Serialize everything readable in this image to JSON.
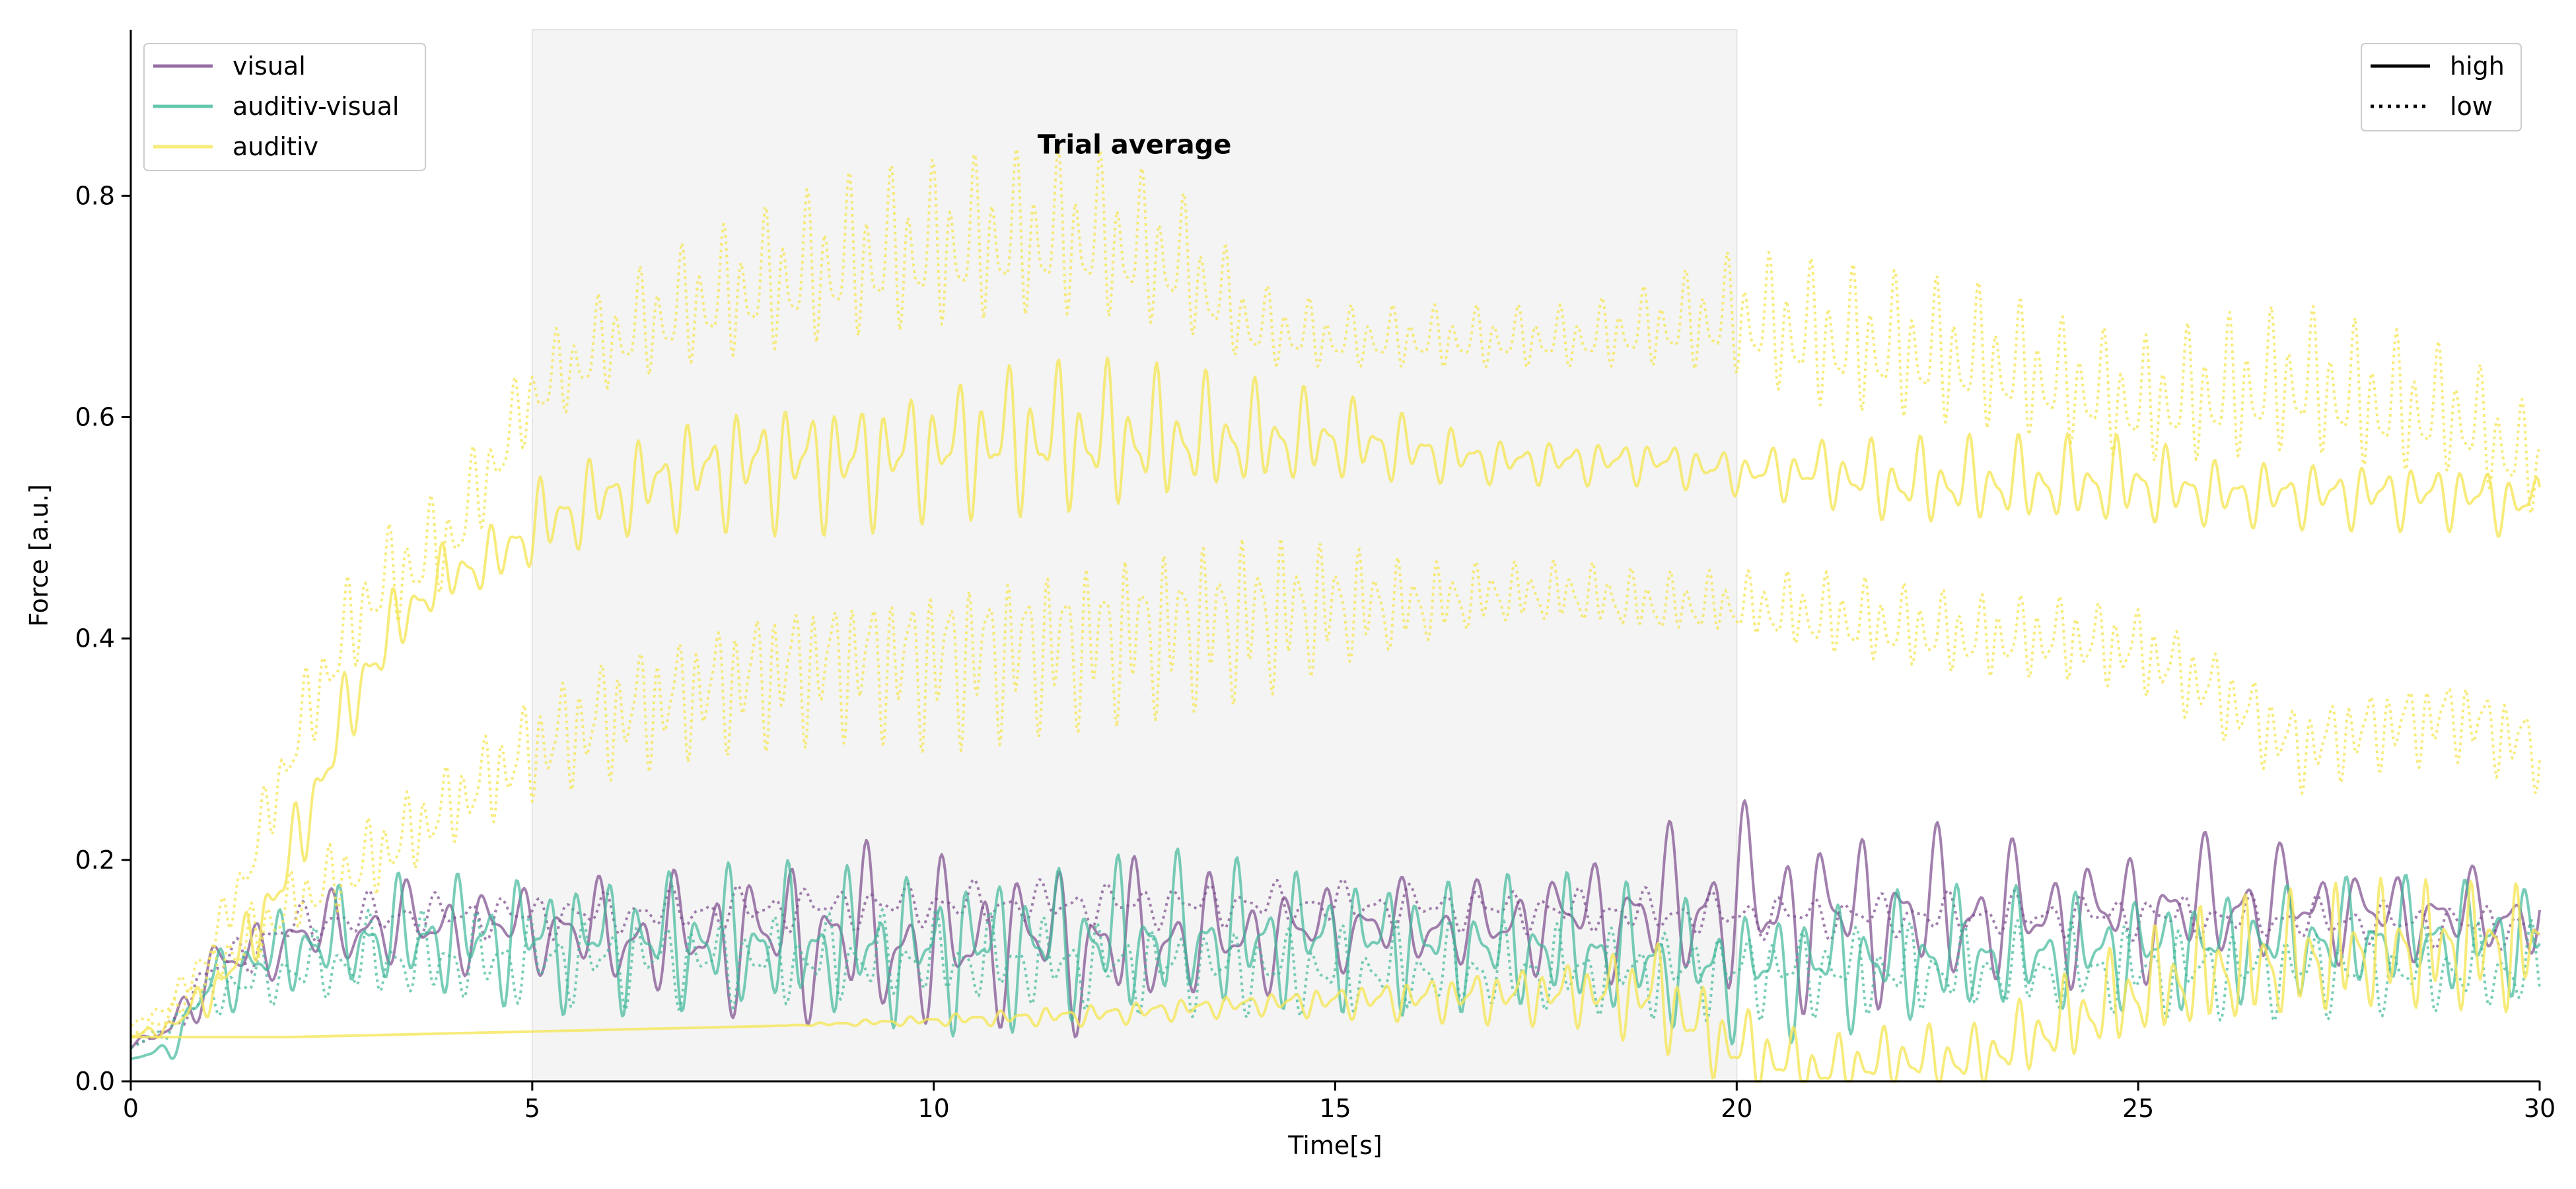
{
  "chart_data": {
    "type": "line",
    "title": "",
    "annotation": "Trial average",
    "xlabel": "Time[s]",
    "ylabel": "Force [a.u.]",
    "xlim": [
      0,
      30
    ],
    "ylim": [
      0,
      0.95
    ],
    "x_ticks": [
      0,
      5,
      10,
      15,
      20,
      25,
      30
    ],
    "x_tick_labels": [
      "0",
      "5",
      "10",
      "15",
      "20",
      "25",
      "30"
    ],
    "y_ticks": [
      0.0,
      0.2,
      0.4,
      0.6,
      0.8
    ],
    "y_tick_labels": [
      "0.0",
      "0.2",
      "0.4",
      "0.6",
      "0.8"
    ],
    "shaded_region": {
      "x": [
        5,
        20
      ],
      "color": "#f4f4f4"
    },
    "grid": false,
    "legend_conditions": {
      "position": "upper-left",
      "entries": [
        {
          "label": "visual",
          "color": "#7b4a8c"
        },
        {
          "label": "auditiv-visual",
          "color": "#3fb89a"
        },
        {
          "label": "auditiv",
          "color": "#f5e65a"
        }
      ]
    },
    "legend_linestyle": {
      "position": "upper-right",
      "entries": [
        {
          "label": "high",
          "style": "solid"
        },
        {
          "label": "low",
          "style": "dotted"
        }
      ]
    },
    "series": [
      {
        "name": "visual",
        "style": "solid",
        "color": "#7b4a8c",
        "x": [
          0,
          0.5,
          1,
          2,
          3,
          4,
          5,
          6,
          7,
          8,
          9,
          10,
          11,
          12,
          13,
          14,
          15,
          16,
          17,
          18,
          19,
          19.5,
          20,
          21,
          22,
          23,
          24,
          25,
          26,
          27,
          28,
          29,
          30
        ],
        "y": [
          0.03,
          0.05,
          0.1,
          0.13,
          0.14,
          0.14,
          0.14,
          0.13,
          0.13,
          0.13,
          0.13,
          0.12,
          0.13,
          0.12,
          0.13,
          0.13,
          0.14,
          0.14,
          0.14,
          0.15,
          0.15,
          0.16,
          0.16,
          0.15,
          0.15,
          0.15,
          0.15,
          0.15,
          0.16,
          0.16,
          0.15,
          0.15,
          0.15
        ],
        "amp": [
          0.0,
          0.02,
          0.03,
          0.03,
          0.04,
          0.04,
          0.04,
          0.05,
          0.06,
          0.07,
          0.08,
          0.08,
          0.07,
          0.08,
          0.06,
          0.05,
          0.04,
          0.04,
          0.04,
          0.05,
          0.07,
          0.08,
          0.09,
          0.08,
          0.08,
          0.07,
          0.06,
          0.06,
          0.06,
          0.05,
          0.04,
          0.04,
          0.04
        ]
      },
      {
        "name": "visual",
        "style": "dotted",
        "color": "#7b4a8c",
        "x": [
          0,
          0.5,
          1,
          2,
          3,
          5,
          10,
          15,
          20,
          25,
          30
        ],
        "y": [
          0.03,
          0.05,
          0.1,
          0.14,
          0.15,
          0.15,
          0.16,
          0.16,
          0.15,
          0.15,
          0.14
        ],
        "amp": [
          0.0,
          0.01,
          0.02,
          0.02,
          0.02,
          0.02,
          0.02,
          0.02,
          0.02,
          0.02,
          0.02
        ]
      },
      {
        "name": "auditiv-visual",
        "style": "solid",
        "color": "#3fb89a",
        "x": [
          0,
          0.5,
          1,
          2,
          3,
          5,
          10,
          13,
          15,
          18,
          20,
          22,
          25,
          28,
          30
        ],
        "y": [
          0.02,
          0.03,
          0.09,
          0.12,
          0.13,
          0.13,
          0.12,
          0.13,
          0.13,
          0.12,
          0.1,
          0.11,
          0.12,
          0.13,
          0.13
        ],
        "amp": [
          0.0,
          0.01,
          0.03,
          0.04,
          0.05,
          0.06,
          0.07,
          0.07,
          0.06,
          0.06,
          0.06,
          0.06,
          0.05,
          0.05,
          0.05
        ]
      },
      {
        "name": "auditiv-visual",
        "style": "dotted",
        "color": "#3fb89a",
        "x": [
          0,
          0.5,
          1,
          2,
          3,
          5,
          10,
          15,
          20,
          25,
          30
        ],
        "y": [
          0.03,
          0.05,
          0.08,
          0.1,
          0.11,
          0.11,
          0.11,
          0.1,
          0.1,
          0.1,
          0.1
        ],
        "amp": [
          0.0,
          0.01,
          0.02,
          0.03,
          0.04,
          0.04,
          0.04,
          0.04,
          0.04,
          0.04,
          0.04
        ]
      },
      {
        "name": "auditiv",
        "style": "solid",
        "color": "#f5e65a",
        "x": [
          0,
          0.5,
          1,
          1.5,
          2,
          2.5,
          3,
          3.5,
          4,
          4.5,
          5,
          6,
          7,
          8,
          9,
          10,
          11,
          12,
          13,
          14,
          15,
          16,
          17,
          18,
          19,
          20,
          21,
          22,
          23,
          24,
          25,
          26,
          27,
          28,
          29,
          30
        ],
        "y": [
          0.04,
          0.05,
          0.08,
          0.13,
          0.2,
          0.3,
          0.38,
          0.43,
          0.46,
          0.47,
          0.5,
          0.53,
          0.55,
          0.56,
          0.56,
          0.57,
          0.58,
          0.58,
          0.58,
          0.58,
          0.58,
          0.57,
          0.56,
          0.56,
          0.56,
          0.55,
          0.55,
          0.54,
          0.54,
          0.54,
          0.54,
          0.53,
          0.53,
          0.53,
          0.53,
          0.52
        ],
        "amp": [
          0.0,
          0.01,
          0.02,
          0.03,
          0.04,
          0.04,
          0.04,
          0.03,
          0.03,
          0.03,
          0.04,
          0.04,
          0.05,
          0.06,
          0.06,
          0.06,
          0.07,
          0.07,
          0.06,
          0.05,
          0.04,
          0.03,
          0.02,
          0.02,
          0.02,
          0.02,
          0.03,
          0.04,
          0.04,
          0.04,
          0.04,
          0.03,
          0.03,
          0.03,
          0.03,
          0.03
        ]
      },
      {
        "name": "auditiv",
        "style": "solid",
        "color": "#f5e65a",
        "x": [
          0,
          1,
          2,
          5,
          8,
          10,
          12,
          14,
          16,
          18,
          19,
          19.5,
          20,
          21,
          22,
          23,
          24,
          25,
          26,
          27,
          28,
          29,
          30
        ],
        "y": [
          0.04,
          0.04,
          0.04,
          0.045,
          0.05,
          0.055,
          0.06,
          0.07,
          0.075,
          0.08,
          0.08,
          0.05,
          0.03,
          0.01,
          0.02,
          0.02,
          0.05,
          0.08,
          0.1,
          0.11,
          0.12,
          0.12,
          0.12
        ],
        "amp": [
          0.0,
          0.0,
          0.0,
          0.0,
          0.0,
          0.005,
          0.01,
          0.01,
          0.02,
          0.03,
          0.05,
          0.04,
          0.04,
          0.03,
          0.03,
          0.03,
          0.04,
          0.05,
          0.06,
          0.06,
          0.06,
          0.06,
          0.06
        ]
      },
      {
        "name": "auditiv",
        "style": "dotted",
        "color": "#f5e65a",
        "x": [
          0,
          0.5,
          1,
          1.5,
          2,
          2.5,
          3,
          4,
          5,
          6,
          7,
          8,
          9,
          10,
          11,
          12,
          13,
          14,
          15,
          16,
          17,
          18,
          19,
          20,
          21,
          22,
          23,
          24,
          25,
          26,
          27,
          28,
          29,
          30
        ],
        "y": [
          0.05,
          0.07,
          0.12,
          0.2,
          0.3,
          0.38,
          0.44,
          0.49,
          0.62,
          0.67,
          0.7,
          0.72,
          0.74,
          0.75,
          0.76,
          0.76,
          0.74,
          0.68,
          0.67,
          0.67,
          0.67,
          0.67,
          0.68,
          0.69,
          0.67,
          0.66,
          0.65,
          0.63,
          0.61,
          0.62,
          0.63,
          0.61,
          0.6,
          0.55
        ],
        "amp": [
          0.0,
          0.01,
          0.02,
          0.03,
          0.04,
          0.05,
          0.05,
          0.05,
          0.04,
          0.05,
          0.06,
          0.07,
          0.08,
          0.08,
          0.08,
          0.08,
          0.07,
          0.04,
          0.03,
          0.03,
          0.03,
          0.03,
          0.04,
          0.06,
          0.07,
          0.07,
          0.07,
          0.06,
          0.06,
          0.07,
          0.07,
          0.07,
          0.06,
          0.05
        ]
      },
      {
        "name": "auditiv",
        "style": "dotted",
        "color": "#f5e65a",
        "x": [
          0,
          0.5,
          1,
          1.5,
          2,
          3,
          4,
          5,
          6,
          7,
          8,
          9,
          10,
          11,
          12,
          13,
          14,
          15,
          16,
          17,
          18,
          19,
          20,
          21,
          22,
          23,
          24,
          25,
          26,
          27,
          28,
          29,
          30
        ],
        "y": [
          0.04,
          0.06,
          0.1,
          0.13,
          0.16,
          0.2,
          0.25,
          0.3,
          0.33,
          0.35,
          0.37,
          0.38,
          0.38,
          0.39,
          0.4,
          0.41,
          0.42,
          0.43,
          0.43,
          0.44,
          0.44,
          0.43,
          0.43,
          0.42,
          0.41,
          0.4,
          0.4,
          0.39,
          0.35,
          0.3,
          0.32,
          0.33,
          0.3
        ],
        "amp": [
          0.0,
          0.01,
          0.02,
          0.03,
          0.03,
          0.04,
          0.04,
          0.05,
          0.06,
          0.06,
          0.07,
          0.07,
          0.08,
          0.08,
          0.08,
          0.08,
          0.08,
          0.06,
          0.04,
          0.03,
          0.03,
          0.03,
          0.03,
          0.04,
          0.04,
          0.04,
          0.04,
          0.04,
          0.04,
          0.04,
          0.04,
          0.04,
          0.04
        ]
      }
    ]
  }
}
